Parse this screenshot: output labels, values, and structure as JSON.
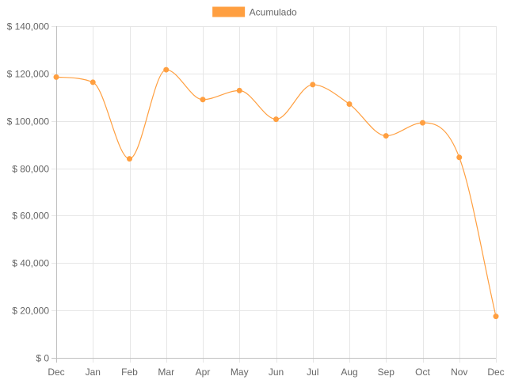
{
  "chart_data": {
    "type": "line",
    "categories": [
      "Dec",
      "Jan",
      "Feb",
      "Mar",
      "Apr",
      "May",
      "Jun",
      "Jul",
      "Aug",
      "Sep",
      "Oct",
      "Nov",
      "Dec"
    ],
    "series": [
      {
        "name": "Acumulado",
        "color": "#ff9f40",
        "values": [
          118500,
          116300,
          84000,
          121600,
          109000,
          112800,
          100700,
          115300,
          107100,
          93700,
          99200,
          84600,
          17500
        ]
      }
    ],
    "y_ticks": [
      "$ 0",
      "$ 20,000",
      "$ 40,000",
      "$ 60,000",
      "$ 80,000",
      "$ 100,000",
      "$ 120,000",
      "$ 140,000"
    ],
    "ylim": [
      0,
      140000
    ],
    "grid": true,
    "legend_position": "top",
    "curve": "smooth"
  }
}
